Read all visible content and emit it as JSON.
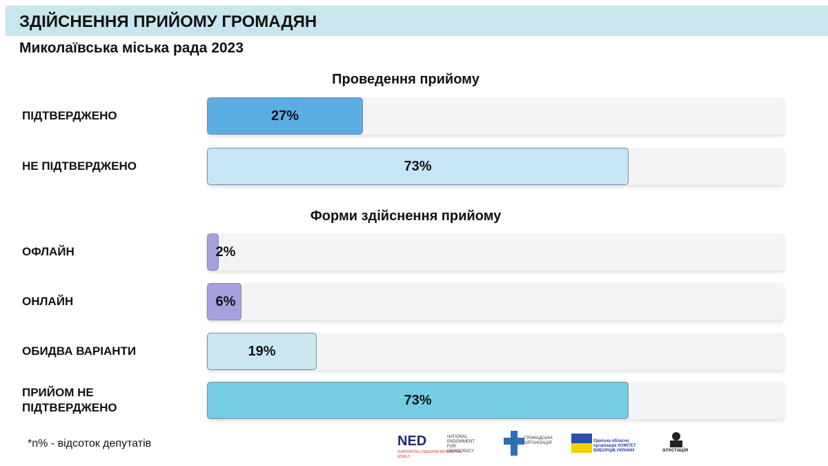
{
  "header": {
    "title": "ЗДІЙСНЕННЯ ПРИЙОМУ ГРОМАДЯН",
    "subtitle": "Миколаївська міська рада 2023"
  },
  "chart_data": [
    {
      "type": "bar",
      "title": "Проведення прийому",
      "categories": [
        "ПІДТВЕРДЖЕНО",
        "НЕ ПІДТВЕРДЖЕНО"
      ],
      "values": [
        27,
        73
      ],
      "value_labels": [
        "27%",
        "73%"
      ],
      "colors": [
        "#5aaee3",
        "#c6e6f8"
      ],
      "xlim": [
        0,
        100
      ]
    },
    {
      "type": "bar",
      "title": "Форми здійснення прийому",
      "categories": [
        "ОФЛАЙН",
        "ОНЛАЙН",
        "ОБИДВА ВАРІАНТИ",
        "ПРИЙОМ НЕ ПІДТВЕРДЖЕНО"
      ],
      "values": [
        2,
        6,
        19,
        73
      ],
      "value_labels": [
        "2%",
        "6%",
        "19%",
        "73%"
      ],
      "colors": [
        "#a6a0e0",
        "#a6a0e0",
        "#c9e6ee",
        "#74cde3"
      ],
      "xlim": [
        0,
        100
      ]
    }
  ],
  "footnote": "*n% - відсоток депутатів",
  "logos": {
    "ned": "NED",
    "ned_name": "NATIONAL ENDOWMENT FOR DEMOCRACY",
    "ned_tagline": "SUPPORTING FREEDOM AROUND THE WORLD",
    "ngo": "ГРОМАДСЬКА ОРГАНІЗАЦІЯ",
    "cvu": "Одеська обласна організація КОМІТЕТ ВИБОРЦІВ УКРАЇНИ",
    "atest": "атестація"
  }
}
